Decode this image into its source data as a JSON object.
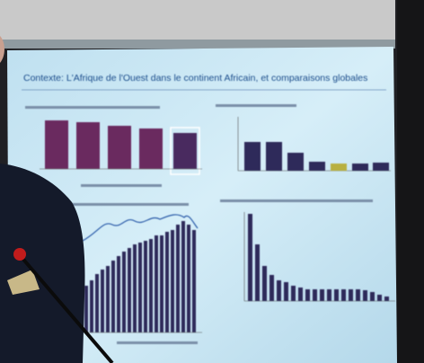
{
  "slide": {
    "title": "Contexte: L'Afrique de l'Ouest dans le continent Africain, et comparaisons globales"
  }
}
